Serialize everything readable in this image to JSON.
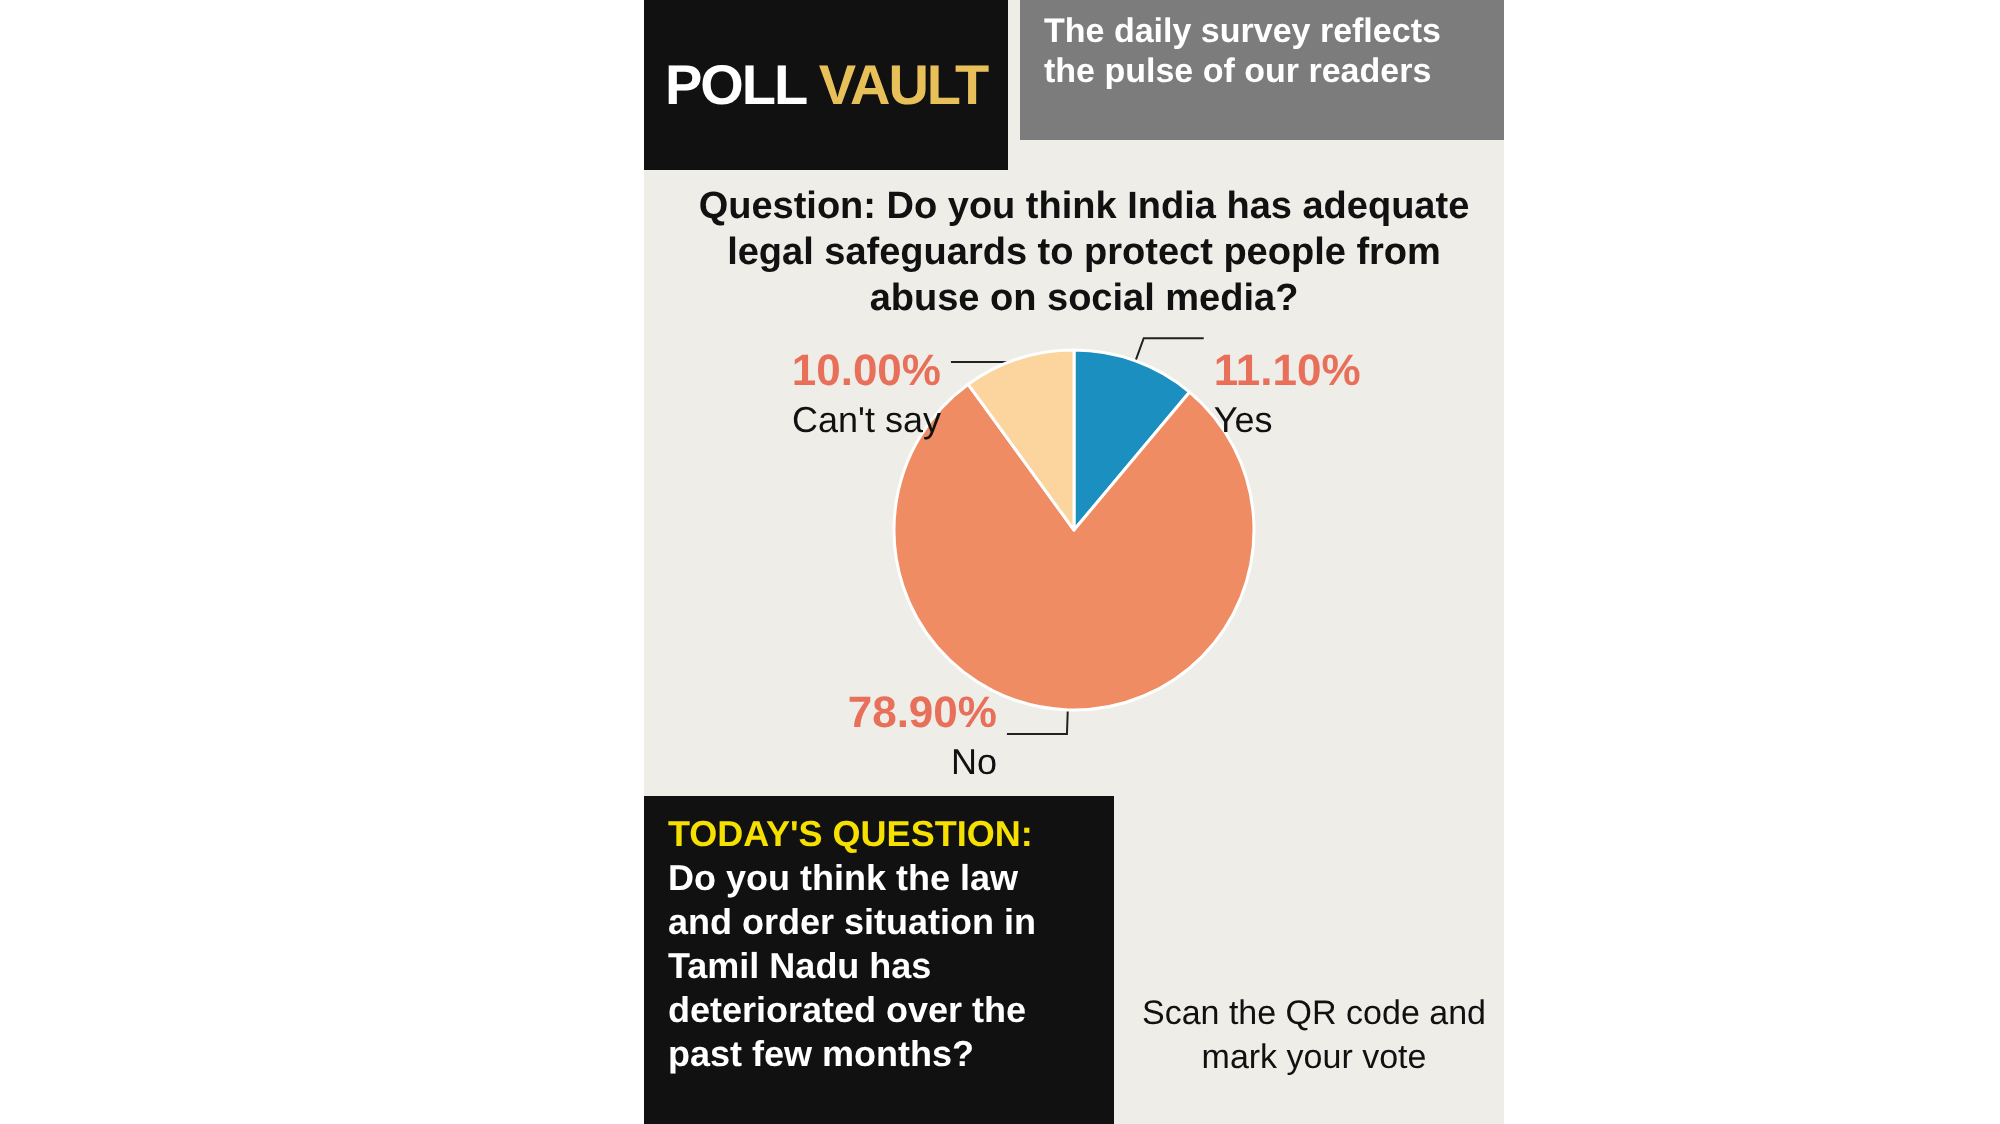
{
  "chart_data": {
    "type": "pie",
    "title": "POLL VAULT",
    "subtitle": "The daily survey reflects the pulse of our readers",
    "annotations": [
      "Question: Do you think India has adequate legal safeguards to protect people from abuse on social media?",
      "TODAY'S QUESTION:",
      "Do you think the law and order situation in Tamil Nadu has deteriorated over the past few months?",
      "Scan the QR code and mark your vote"
    ],
    "categories": [
      "Yes",
      "No",
      "Can't say"
    ],
    "values": [
      11.1,
      78.9,
      10.0
    ],
    "colors": [
      "#1b8fc0",
      "#ef8c64",
      "#fbd49e"
    ],
    "value_labels": [
      "11.10%",
      "78.90%",
      "10.00%"
    ],
    "legend": false
  }
}
